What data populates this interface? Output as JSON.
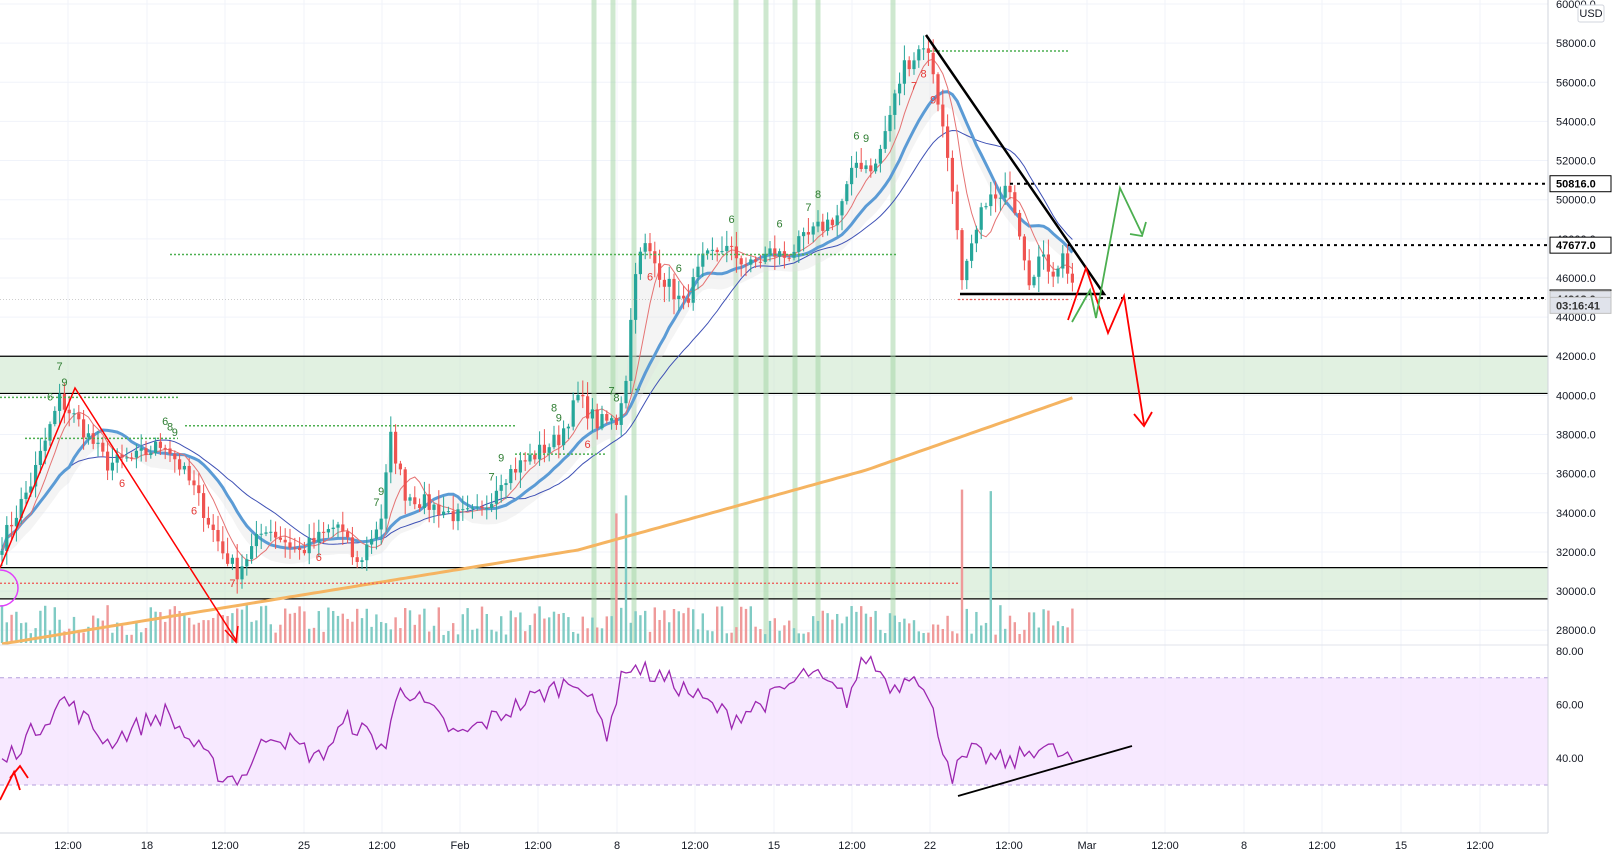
{
  "chart_data": {
    "type": "candlestick",
    "currency": "USD",
    "x_tick_labels": [
      "12:00",
      "18",
      "12:00",
      "25",
      "12:00",
      "Feb",
      "12:00",
      "8",
      "12:00",
      "15",
      "12:00",
      "22",
      "12:00",
      "Mar",
      "12:00",
      "8",
      "12:00",
      "15",
      "12:00"
    ],
    "price_axis": {
      "min": 27000,
      "max": 60000,
      "ticks": [
        28000,
        30000,
        32000,
        34000,
        36000,
        38000,
        40000,
        42000,
        44000,
        46000,
        48000,
        50000,
        52000,
        54000,
        56000,
        58000,
        60000
      ]
    },
    "price_labels": [
      {
        "value": 50816.0,
        "text": "50816.0",
        "style": "dark"
      },
      {
        "value": 47677.0,
        "text": "47677.0",
        "style": "dark"
      },
      {
        "value": 44977.5,
        "text": "44977.5",
        "style": "dark"
      },
      {
        "value": 44913.0,
        "text": "44913.0",
        "style": "grey"
      },
      {
        "value": 44600.0,
        "text": "03:16:41",
        "style": "grey"
      }
    ],
    "zones": [
      {
        "from": 40100,
        "to": 42000,
        "color": "#c8e6c9"
      },
      {
        "from": 29600,
        "to": 31200,
        "color": "#c8e6c9"
      }
    ],
    "rsi": {
      "min": 20,
      "max": 84,
      "ticks": [
        40,
        60,
        80
      ],
      "band": [
        30,
        70
      ]
    },
    "colors": {
      "up": "#26a69a",
      "down": "#ef5350",
      "ema_blue": "#5b9bd5",
      "ma_orange": "#f5b461",
      "rsi": "#9c27b0",
      "annot_red": "#ff0000",
      "annot_green": "#4caf50"
    },
    "seq_counts": [
      {
        "bar": 10,
        "text": "6",
        "c": "g"
      },
      {
        "bar": 12,
        "text": "7",
        "c": "g"
      },
      {
        "bar": 13,
        "text": "9",
        "c": "g"
      },
      {
        "bar": 34,
        "text": "6",
        "c": "g"
      },
      {
        "bar": 35,
        "text": "8",
        "c": "g"
      },
      {
        "bar": 36,
        "text": "9",
        "c": "g"
      },
      {
        "bar": 78,
        "text": "7",
        "c": "g"
      },
      {
        "bar": 79,
        "text": "9",
        "c": "g"
      },
      {
        "bar": 102,
        "text": "7",
        "c": "g"
      },
      {
        "bar": 104,
        "text": "9",
        "c": "g"
      },
      {
        "bar": 115,
        "text": "8",
        "c": "g"
      },
      {
        "bar": 116,
        "text": "9",
        "c": "g"
      },
      {
        "bar": 127,
        "text": "7",
        "c": "g"
      },
      {
        "bar": 128,
        "text": "8",
        "c": "g"
      },
      {
        "bar": 141,
        "text": "6",
        "c": "g"
      },
      {
        "bar": 152,
        "text": "6",
        "c": "g"
      },
      {
        "bar": 162,
        "text": "6",
        "c": "g"
      },
      {
        "bar": 168,
        "text": "7",
        "c": "g"
      },
      {
        "bar": 170,
        "text": "8",
        "c": "g"
      },
      {
        "bar": 178,
        "text": "6",
        "c": "g"
      },
      {
        "bar": 180,
        "text": "9",
        "c": "g"
      },
      {
        "bar": 25,
        "text": "6",
        "c": "r"
      },
      {
        "bar": 40,
        "text": "6",
        "c": "r"
      },
      {
        "bar": 48,
        "text": "7",
        "c": "r"
      },
      {
        "bar": 66,
        "text": "6",
        "c": "r"
      },
      {
        "bar": 122,
        "text": "6",
        "c": "r"
      },
      {
        "bar": 135,
        "text": "6",
        "c": "r"
      },
      {
        "bar": 190,
        "text": "7",
        "c": "r"
      },
      {
        "bar": 192,
        "text": "8",
        "c": "r"
      },
      {
        "bar": 194,
        "text": "9",
        "c": "r"
      }
    ]
  }
}
